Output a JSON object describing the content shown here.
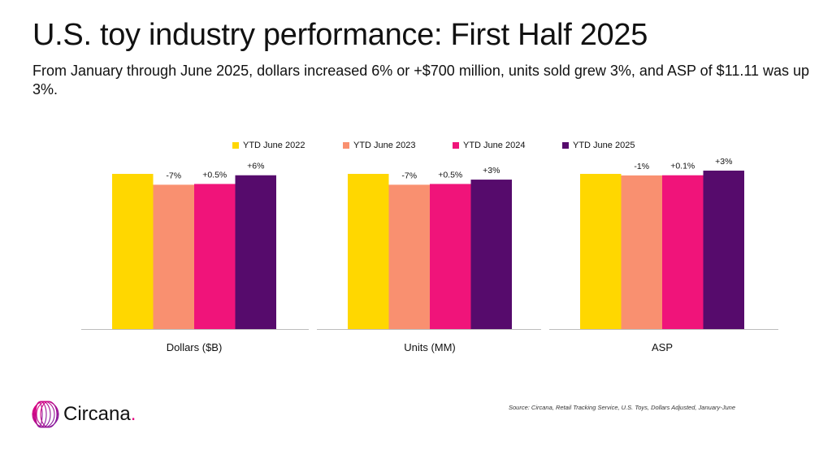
{
  "header": {
    "title": "U.S. toy industry performance: First Half 2025",
    "subtitle": "From January through June 2025, dollars increased 6% or +$700 million, units sold grew 3%, and ASP of $11.11 was up 3%."
  },
  "chart_data": {
    "type": "bar",
    "legend_position": "top",
    "grid": false,
    "series": [
      {
        "name": "YTD June 2022",
        "color": "#ffd700"
      },
      {
        "name": "YTD June 2023",
        "color": "#f99070"
      },
      {
        "name": "YTD June 2024",
        "color": "#f0147a"
      },
      {
        "name": "YTD June 2025",
        "color": "#560b6c"
      }
    ],
    "groups": [
      {
        "label": "Dollars ($B)",
        "relative_values": [
          100,
          93,
          93.5,
          99.1
        ],
        "data_labels": [
          "",
          "-7%",
          "+0.5%",
          "+6%"
        ]
      },
      {
        "label": "Units (MM)",
        "relative_values": [
          100,
          93,
          93.5,
          96.3
        ],
        "data_labels": [
          "",
          "-7%",
          "+0.5%",
          "+3%"
        ]
      },
      {
        "label": "ASP",
        "relative_values": [
          100,
          99,
          99.1,
          102.1
        ],
        "data_labels": [
          "",
          "-1%",
          "+0.1%",
          "+3%"
        ]
      }
    ]
  },
  "footer": {
    "source": "Source: Circana, Retail Tracking Service, U.S. Toys, Dollars Adjusted, January-June",
    "logo_text": "Circana",
    "logo_dot": "."
  }
}
